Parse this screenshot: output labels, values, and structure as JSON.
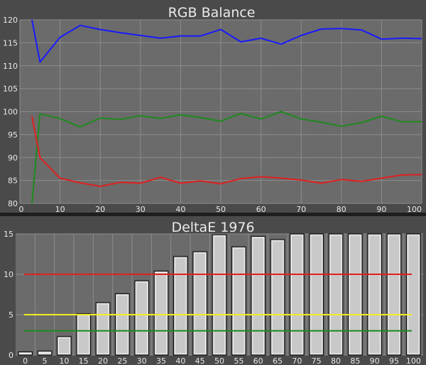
{
  "chart_data": [
    {
      "type": "line",
      "title": "RGB Balance",
      "x": [
        3,
        5,
        10,
        15,
        20,
        25,
        30,
        35,
        40,
        45,
        50,
        55,
        60,
        65,
        70,
        75,
        80,
        85,
        90,
        95,
        100
      ],
      "series": [
        {
          "color": "#1a1aff",
          "values": [
            120,
            110.8,
            116.2,
            118.8,
            117.9,
            117.2,
            116.6,
            116.0,
            116.5,
            116.5,
            117.9,
            115.2,
            116.0,
            114.7,
            116.6,
            118.0,
            118.1,
            117.8,
            115.8,
            116.0,
            115.9
          ]
        },
        {
          "color": "#1e8a1e",
          "values": [
            80,
            99.5,
            98.5,
            96.7,
            98.6,
            98.3,
            99.1,
            98.5,
            99.3,
            98.7,
            97.9,
            99.6,
            98.4,
            100.0,
            98.4,
            97.7,
            96.8,
            97.6,
            99.0,
            97.8,
            97.8
          ]
        },
        {
          "color": "#e02020",
          "values": [
            99,
            90.0,
            85.5,
            84.5,
            83.7,
            84.6,
            84.4,
            85.7,
            84.4,
            84.9,
            84.3,
            85.4,
            85.8,
            85.5,
            85.1,
            84.4,
            85.2,
            84.8,
            85.5,
            86.2,
            86.3
          ]
        }
      ],
      "xlim": [
        0,
        100
      ],
      "ylim": [
        80,
        120
      ],
      "xticks": [
        "0",
        "10",
        "20",
        "30",
        "40",
        "50",
        "60",
        "70",
        "80",
        "90",
        "100"
      ],
      "yticks": [
        "80",
        "85",
        "90",
        "95",
        "100",
        "105",
        "110",
        "115",
        "120"
      ],
      "grid": true
    },
    {
      "type": "bar",
      "title": "DeltaE 1976",
      "categories": [
        "0",
        "5",
        "10",
        "15",
        "20",
        "25",
        "30",
        "35",
        "40",
        "45",
        "50",
        "55",
        "60",
        "65",
        "70",
        "75",
        "80",
        "85",
        "90",
        "95",
        "100"
      ],
      "values": [
        0.4,
        0.5,
        2.3,
        5.1,
        6.5,
        7.6,
        9.2,
        10.4,
        12.2,
        12.8,
        14.9,
        13.4,
        14.7,
        14.3,
        15,
        15,
        15,
        15,
        15,
        15,
        15
      ],
      "ylim": [
        0,
        15
      ],
      "yticks": [
        "0",
        "5",
        "10",
        "15"
      ],
      "reference_lines": [
        {
          "value": 10,
          "color": "#e02020"
        },
        {
          "value": 5,
          "color": "#f0f020"
        },
        {
          "value": 3,
          "color": "#1e8a1e"
        }
      ],
      "grid": true
    }
  ]
}
